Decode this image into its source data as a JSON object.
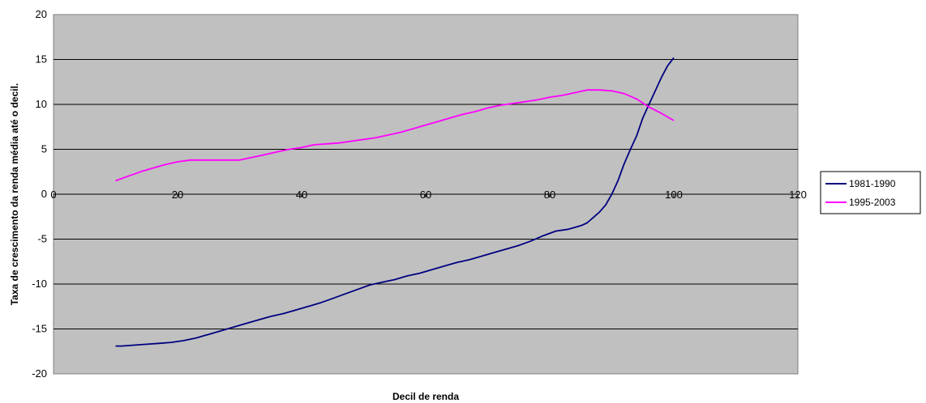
{
  "chart_data": {
    "type": "line",
    "xlabel": "Decil de renda",
    "ylabel": "Taxa de crescimento da renda média até o decil.",
    "xlim": [
      0,
      120
    ],
    "ylim": [
      -20,
      20
    ],
    "xticks": [
      0,
      20,
      40,
      60,
      80,
      100,
      120
    ],
    "yticks": [
      20,
      15,
      10,
      5,
      0,
      -5,
      -10,
      -15,
      -20
    ],
    "grid": "horizontal",
    "legend": "right",
    "plot_background": "#c0c0c0",
    "series": [
      {
        "name": "1981-1990",
        "color": "#000080",
        "x": [
          10,
          11,
          13,
          15,
          17,
          19,
          21,
          23,
          25,
          27,
          29,
          31,
          33,
          35,
          37,
          39,
          41,
          43,
          45,
          47,
          49,
          51,
          53,
          55,
          57,
          59,
          61,
          63,
          65,
          67,
          69,
          71,
          73,
          75,
          77,
          79,
          81,
          83,
          85,
          86,
          87,
          88,
          89,
          90,
          91,
          92,
          93,
          94,
          95,
          96,
          97,
          98,
          99,
          100
        ],
        "y": [
          -16.9,
          -16.9,
          -16.8,
          -16.7,
          -16.6,
          -16.5,
          -16.3,
          -16.0,
          -15.6,
          -15.2,
          -14.8,
          -14.4,
          -14.0,
          -13.6,
          -13.3,
          -12.9,
          -12.5,
          -12.1,
          -11.6,
          -11.1,
          -10.6,
          -10.1,
          -9.8,
          -9.5,
          -9.1,
          -8.8,
          -8.4,
          -8.0,
          -7.6,
          -7.3,
          -6.9,
          -6.5,
          -6.1,
          -5.7,
          -5.2,
          -4.6,
          -4.1,
          -3.9,
          -3.5,
          -3.2,
          -2.6,
          -2.0,
          -1.2,
          0.0,
          1.5,
          3.4,
          5.0,
          6.5,
          8.5,
          10.0,
          11.5,
          13.0,
          14.3,
          15.2
        ]
      },
      {
        "name": "1995-2003",
        "color": "#ff00ff",
        "x": [
          10,
          12,
          14,
          16,
          18,
          20,
          22,
          24,
          26,
          28,
          30,
          32,
          34,
          36,
          38,
          40,
          42,
          44,
          46,
          48,
          50,
          52,
          54,
          56,
          58,
          60,
          62,
          64,
          66,
          68,
          70,
          72,
          74,
          76,
          78,
          80,
          82,
          84,
          86,
          88,
          90,
          92,
          94,
          96,
          98,
          100
        ],
        "y": [
          1.5,
          2.0,
          2.5,
          2.9,
          3.3,
          3.6,
          3.8,
          3.8,
          3.8,
          3.8,
          3.8,
          4.1,
          4.4,
          4.7,
          5.0,
          5.2,
          5.5,
          5.6,
          5.7,
          5.9,
          6.1,
          6.3,
          6.6,
          6.9,
          7.3,
          7.7,
          8.1,
          8.5,
          8.9,
          9.2,
          9.6,
          9.9,
          10.1,
          10.3,
          10.5,
          10.8,
          11.0,
          11.3,
          11.6,
          11.6,
          11.5,
          11.2,
          10.6,
          9.7,
          9.0,
          8.2
        ]
      }
    ]
  }
}
